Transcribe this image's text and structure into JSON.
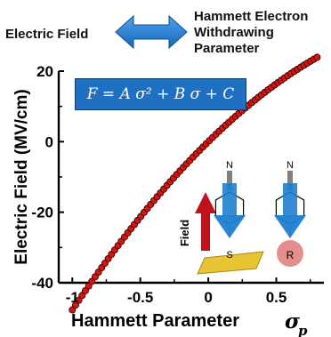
{
  "header": {
    "left_label": "Electric Field",
    "right_label": "Hammett Electron\nWithdrawing\nParameter"
  },
  "formula": "F = A σ² + B σ + C",
  "inset": {
    "field_label": "Field",
    "left_atom": "S",
    "right_atom": "R",
    "nitrile_label": "N"
  },
  "colors": {
    "marker_fill": "#d8140f",
    "marker_edge": "#1a0000",
    "formula_bg": "#1f6fc2",
    "arrow_blue": "#1f7fd0",
    "field_arrow": "#c0121c",
    "gold": "#e8c435",
    "r_circle": "#e07a7a"
  },
  "chart_data": {
    "type": "scatter",
    "title": "",
    "xlabel": "Hammett Parameter",
    "xlabel_symbol": "σ",
    "xlabel_subscript": "p",
    "ylabel": "Electric Field (MV/cm)",
    "xlim": [
      -1.1,
      0.85
    ],
    "ylim": [
      -40,
      20
    ],
    "xticks": [
      -1,
      -0.5,
      0,
      0.5
    ],
    "xtick_labels": [
      "-1",
      "-0.5",
      "0",
      "0.5"
    ],
    "yticks": [
      -40,
      -20,
      0,
      20
    ],
    "ytick_labels": [
      "-40",
      "-20",
      "0",
      "20"
    ],
    "fit": {
      "A": -9.9,
      "B": 37.8,
      "C": 0.0
    },
    "x_start": -1.0,
    "x_end": 0.8,
    "n_points": 76,
    "grid": false,
    "legend": "none"
  }
}
